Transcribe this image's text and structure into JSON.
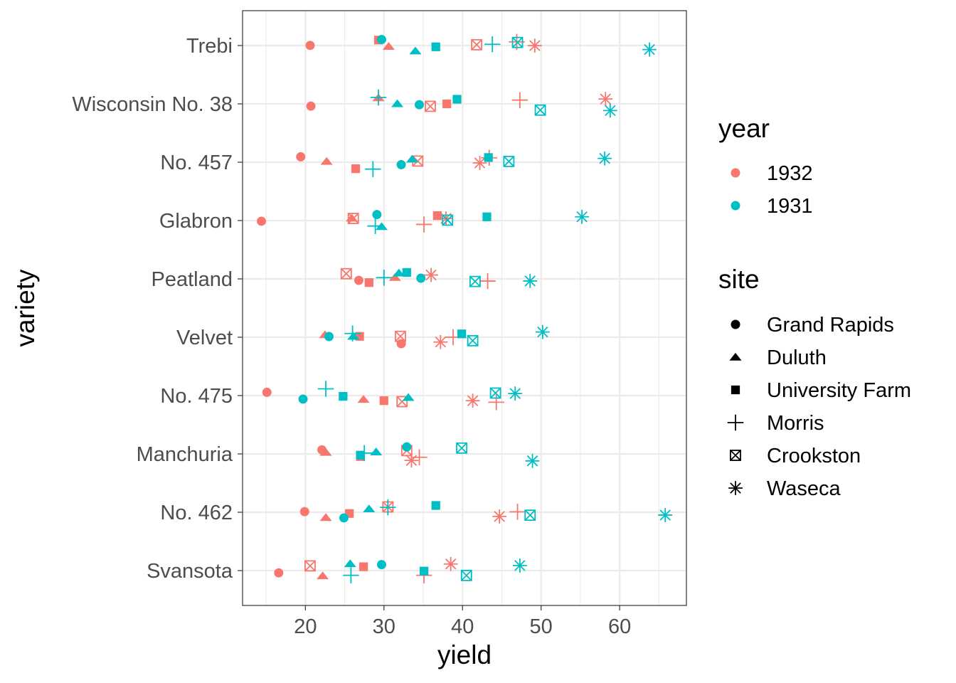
{
  "chart_data": {
    "type": "scatter",
    "title": "",
    "xlabel": "yield",
    "ylabel": "variety",
    "xlim": [
      12.0,
      68.5
    ],
    "xticks": [
      20,
      30,
      40,
      50,
      60
    ],
    "grid": true,
    "varieties": [
      "Svansota",
      "No. 462",
      "Manchuria",
      "No. 475",
      "Velvet",
      "Peatland",
      "Glabron",
      "No. 457",
      "Wisconsin No. 38",
      "Trebi"
    ],
    "years": [
      {
        "name": "1932",
        "color": "#F8766D"
      },
      {
        "name": "1931",
        "color": "#00BFC4"
      }
    ],
    "sites": [
      {
        "name": "Grand Rapids",
        "shape": "circle"
      },
      {
        "name": "Duluth",
        "shape": "triangle"
      },
      {
        "name": "University Farm",
        "shape": "square"
      },
      {
        "name": "Morris",
        "shape": "plus"
      },
      {
        "name": "Crookston",
        "shape": "boxcross"
      },
      {
        "name": "Waseca",
        "shape": "asterisk"
      }
    ],
    "legend_year_title": "year",
    "legend_site_title": "site",
    "points": [
      {
        "variety": "Trebi",
        "year": "1932",
        "site": "Grand Rapids",
        "yield": 20.6
      },
      {
        "variety": "Trebi",
        "year": "1932",
        "site": "Duluth",
        "yield": 30.6
      },
      {
        "variety": "Trebi",
        "year": "1932",
        "site": "University Farm",
        "yield": 29.3
      },
      {
        "variety": "Trebi",
        "year": "1932",
        "site": "Morris",
        "yield": 46.9
      },
      {
        "variety": "Trebi",
        "year": "1932",
        "site": "Crookston",
        "yield": 41.8
      },
      {
        "variety": "Trebi",
        "year": "1932",
        "site": "Waseca",
        "yield": 49.2
      },
      {
        "variety": "Trebi",
        "year": "1931",
        "site": "Grand Rapids",
        "yield": 29.7
      },
      {
        "variety": "Trebi",
        "year": "1931",
        "site": "Duluth",
        "yield": 34.0
      },
      {
        "variety": "Trebi",
        "year": "1931",
        "site": "University Farm",
        "yield": 36.6
      },
      {
        "variety": "Trebi",
        "year": "1931",
        "site": "Morris",
        "yield": 43.8
      },
      {
        "variety": "Trebi",
        "year": "1931",
        "site": "Crookston",
        "yield": 47.0
      },
      {
        "variety": "Trebi",
        "year": "1931",
        "site": "Waseca",
        "yield": 63.8
      },
      {
        "variety": "Wisconsin No. 38",
        "year": "1932",
        "site": "Grand Rapids",
        "yield": 20.7
      },
      {
        "variety": "Wisconsin No. 38",
        "year": "1932",
        "site": "Duluth",
        "yield": 29.3
      },
      {
        "variety": "Wisconsin No. 38",
        "year": "1932",
        "site": "University Farm",
        "yield": 38.0
      },
      {
        "variety": "Wisconsin No. 38",
        "year": "1932",
        "site": "Morris",
        "yield": 47.3
      },
      {
        "variety": "Wisconsin No. 38",
        "year": "1932",
        "site": "Crookston",
        "yield": 35.9
      },
      {
        "variety": "Wisconsin No. 38",
        "year": "1932",
        "site": "Waseca",
        "yield": 58.2
      },
      {
        "variety": "Wisconsin No. 38",
        "year": "1931",
        "site": "Grand Rapids",
        "yield": 34.5
      },
      {
        "variety": "Wisconsin No. 38",
        "year": "1931",
        "site": "Duluth",
        "yield": 31.7
      },
      {
        "variety": "Wisconsin No. 38",
        "year": "1931",
        "site": "University Farm",
        "yield": 39.3
      },
      {
        "variety": "Wisconsin No. 38",
        "year": "1931",
        "site": "Morris",
        "yield": 29.3
      },
      {
        "variety": "Wisconsin No. 38",
        "year": "1931",
        "site": "Crookston",
        "yield": 49.9
      },
      {
        "variety": "Wisconsin No. 38",
        "year": "1931",
        "site": "Waseca",
        "yield": 58.8
      },
      {
        "variety": "No. 457",
        "year": "1932",
        "site": "Grand Rapids",
        "yield": 19.4
      },
      {
        "variety": "No. 457",
        "year": "1932",
        "site": "Duluth",
        "yield": 22.7
      },
      {
        "variety": "No. 457",
        "year": "1932",
        "site": "University Farm",
        "yield": 26.4
      },
      {
        "variety": "No. 457",
        "year": "1932",
        "site": "Morris",
        "yield": 43.4
      },
      {
        "variety": "No. 457",
        "year": "1932",
        "site": "Crookston",
        "yield": 34.3
      },
      {
        "variety": "No. 457",
        "year": "1932",
        "site": "Waseca",
        "yield": 42.2
      },
      {
        "variety": "No. 457",
        "year": "1931",
        "site": "Grand Rapids",
        "yield": 32.2
      },
      {
        "variety": "No. 457",
        "year": "1931",
        "site": "Duluth",
        "yield": 33.6
      },
      {
        "variety": "No. 457",
        "year": "1931",
        "site": "University Farm",
        "yield": 43.3
      },
      {
        "variety": "No. 457",
        "year": "1931",
        "site": "Morris",
        "yield": 28.6
      },
      {
        "variety": "No. 457",
        "year": "1931",
        "site": "Crookston",
        "yield": 45.9
      },
      {
        "variety": "No. 457",
        "year": "1931",
        "site": "Waseca",
        "yield": 58.1
      },
      {
        "variety": "Glabron",
        "year": "1932",
        "site": "Grand Rapids",
        "yield": 14.4
      },
      {
        "variety": "Glabron",
        "year": "1932",
        "site": "Duluth",
        "yield": 25.9
      },
      {
        "variety": "Glabron",
        "year": "1932",
        "site": "University Farm",
        "yield": 36.8
      },
      {
        "variety": "Glabron",
        "year": "1932",
        "site": "Morris",
        "yield": 35.1
      },
      {
        "variety": "Glabron",
        "year": "1932",
        "site": "Crookston",
        "yield": 26.1
      },
      {
        "variety": "Glabron",
        "year": "1932",
        "site": "Waseca",
        "yield": 37.9
      },
      {
        "variety": "Glabron",
        "year": "1931",
        "site": "Grand Rapids",
        "yield": 29.1
      },
      {
        "variety": "Glabron",
        "year": "1931",
        "site": "Duluth",
        "yield": 29.7
      },
      {
        "variety": "Glabron",
        "year": "1931",
        "site": "University Farm",
        "yield": 43.1
      },
      {
        "variety": "Glabron",
        "year": "1931",
        "site": "Morris",
        "yield": 28.9
      },
      {
        "variety": "Glabron",
        "year": "1931",
        "site": "Crookston",
        "yield": 38.1
      },
      {
        "variety": "Glabron",
        "year": "1931",
        "site": "Waseca",
        "yield": 55.2
      },
      {
        "variety": "Peatland",
        "year": "1932",
        "site": "Grand Rapids",
        "yield": 26.8
      },
      {
        "variety": "Peatland",
        "year": "1932",
        "site": "Duluth",
        "yield": 31.4
      },
      {
        "variety": "Peatland",
        "year": "1932",
        "site": "University Farm",
        "yield": 28.1
      },
      {
        "variety": "Peatland",
        "year": "1932",
        "site": "Morris",
        "yield": 43.2
      },
      {
        "variety": "Peatland",
        "year": "1932",
        "site": "Crookston",
        "yield": 25.2
      },
      {
        "variety": "Peatland",
        "year": "1932",
        "site": "Waseca",
        "yield": 36.0
      },
      {
        "variety": "Peatland",
        "year": "1931",
        "site": "Grand Rapids",
        "yield": 34.7
      },
      {
        "variety": "Peatland",
        "year": "1931",
        "site": "Duluth",
        "yield": 31.9
      },
      {
        "variety": "Peatland",
        "year": "1931",
        "site": "University Farm",
        "yield": 32.9
      },
      {
        "variety": "Peatland",
        "year": "1931",
        "site": "Morris",
        "yield": 30.0
      },
      {
        "variety": "Peatland",
        "year": "1931",
        "site": "Crookston",
        "yield": 41.6
      },
      {
        "variety": "Peatland",
        "year": "1931",
        "site": "Waseca",
        "yield": 48.6
      },
      {
        "variety": "Velvet",
        "year": "1932",
        "site": "Grand Rapids",
        "yield": 32.2
      },
      {
        "variety": "Velvet",
        "year": "1932",
        "site": "Duluth",
        "yield": 22.5
      },
      {
        "variety": "Velvet",
        "year": "1932",
        "site": "University Farm",
        "yield": 26.9
      },
      {
        "variety": "Velvet",
        "year": "1932",
        "site": "Morris",
        "yield": 38.8
      },
      {
        "variety": "Velvet",
        "year": "1932",
        "site": "Crookston",
        "yield": 32.1
      },
      {
        "variety": "Velvet",
        "year": "1932",
        "site": "Waseca",
        "yield": 37.2
      },
      {
        "variety": "Velvet",
        "year": "1931",
        "site": "Grand Rapids",
        "yield": 23.0
      },
      {
        "variety": "Velvet",
        "year": "1931",
        "site": "Duluth",
        "yield": 26.1
      },
      {
        "variety": "Velvet",
        "year": "1931",
        "site": "University Farm",
        "yield": 39.9
      },
      {
        "variety": "Velvet",
        "year": "1931",
        "site": "Morris",
        "yield": 26.0
      },
      {
        "variety": "Velvet",
        "year": "1931",
        "site": "Crookston",
        "yield": 41.3
      },
      {
        "variety": "Velvet",
        "year": "1931",
        "site": "Waseca",
        "yield": 50.2
      },
      {
        "variety": "No. 475",
        "year": "1932",
        "site": "Grand Rapids",
        "yield": 15.1
      },
      {
        "variety": "No. 475",
        "year": "1932",
        "site": "Duluth",
        "yield": 27.4
      },
      {
        "variety": "No. 475",
        "year": "1932",
        "site": "University Farm",
        "yield": 30.0
      },
      {
        "variety": "No. 475",
        "year": "1932",
        "site": "Morris",
        "yield": 44.3
      },
      {
        "variety": "No. 475",
        "year": "1932",
        "site": "Crookston",
        "yield": 32.3
      },
      {
        "variety": "No. 475",
        "year": "1932",
        "site": "Waseca",
        "yield": 41.3
      },
      {
        "variety": "No. 475",
        "year": "1931",
        "site": "Grand Rapids",
        "yield": 19.7
      },
      {
        "variety": "No. 475",
        "year": "1931",
        "site": "Duluth",
        "yield": 33.1
      },
      {
        "variety": "No. 475",
        "year": "1931",
        "site": "University Farm",
        "yield": 24.8
      },
      {
        "variety": "No. 475",
        "year": "1931",
        "site": "Morris",
        "yield": 22.6
      },
      {
        "variety": "No. 475",
        "year": "1931",
        "site": "Crookston",
        "yield": 44.2
      },
      {
        "variety": "No. 475",
        "year": "1931",
        "site": "Waseca",
        "yield": 46.7
      },
      {
        "variety": "Manchuria",
        "year": "1932",
        "site": "Grand Rapids",
        "yield": 22.1
      },
      {
        "variety": "Manchuria",
        "year": "1932",
        "site": "Duluth",
        "yield": 22.6
      },
      {
        "variety": "Manchuria",
        "year": "1932",
        "site": "University Farm",
        "yield": 27.0
      },
      {
        "variety": "Manchuria",
        "year": "1932",
        "site": "Morris",
        "yield": 34.5
      },
      {
        "variety": "Manchuria",
        "year": "1932",
        "site": "Crookston",
        "yield": 32.9
      },
      {
        "variety": "Manchuria",
        "year": "1932",
        "site": "Waseca",
        "yield": 33.5
      },
      {
        "variety": "Manchuria",
        "year": "1931",
        "site": "Grand Rapids",
        "yield": 32.9
      },
      {
        "variety": "Manchuria",
        "year": "1931",
        "site": "Duluth",
        "yield": 29.0
      },
      {
        "variety": "Manchuria",
        "year": "1931",
        "site": "University Farm",
        "yield": 27.0
      },
      {
        "variety": "Manchuria",
        "year": "1931",
        "site": "Morris",
        "yield": 27.5
      },
      {
        "variety": "Manchuria",
        "year": "1931",
        "site": "Crookston",
        "yield": 39.9
      },
      {
        "variety": "Manchuria",
        "year": "1931",
        "site": "Waseca",
        "yield": 48.9
      },
      {
        "variety": "No. 462",
        "year": "1932",
        "site": "Grand Rapids",
        "yield": 19.9
      },
      {
        "variety": "No. 462",
        "year": "1932",
        "site": "Duluth",
        "yield": 22.6
      },
      {
        "variety": "No. 462",
        "year": "1932",
        "site": "University Farm",
        "yield": 25.6
      },
      {
        "variety": "No. 462",
        "year": "1932",
        "site": "Morris",
        "yield": 47.0
      },
      {
        "variety": "No. 462",
        "year": "1932",
        "site": "Crookston",
        "yield": 30.5
      },
      {
        "variety": "No. 462",
        "year": "1932",
        "site": "Waseca",
        "yield": 44.7
      },
      {
        "variety": "No. 462",
        "year": "1931",
        "site": "Grand Rapids",
        "yield": 24.9
      },
      {
        "variety": "No. 462",
        "year": "1931",
        "site": "Duluth",
        "yield": 28.1
      },
      {
        "variety": "No. 462",
        "year": "1931",
        "site": "University Farm",
        "yield": 36.6
      },
      {
        "variety": "No. 462",
        "year": "1931",
        "site": "Morris",
        "yield": 30.5
      },
      {
        "variety": "No. 462",
        "year": "1931",
        "site": "Crookston",
        "yield": 48.6
      },
      {
        "variety": "No. 462",
        "year": "1931",
        "site": "Waseca",
        "yield": 65.8
      },
      {
        "variety": "Svansota",
        "year": "1932",
        "site": "Grand Rapids",
        "yield": 16.6
      },
      {
        "variety": "Svansota",
        "year": "1932",
        "site": "Duluth",
        "yield": 22.2
      },
      {
        "variety": "Svansota",
        "year": "1932",
        "site": "University Farm",
        "yield": 27.4
      },
      {
        "variety": "Svansota",
        "year": "1932",
        "site": "Morris",
        "yield": 35.1
      },
      {
        "variety": "Svansota",
        "year": "1932",
        "site": "Crookston",
        "yield": 20.6
      },
      {
        "variety": "Svansota",
        "year": "1932",
        "site": "Waseca",
        "yield": 38.5
      },
      {
        "variety": "Svansota",
        "year": "1931",
        "site": "Grand Rapids",
        "yield": 29.7
      },
      {
        "variety": "Svansota",
        "year": "1931",
        "site": "Duluth",
        "yield": 25.7
      },
      {
        "variety": "Svansota",
        "year": "1931",
        "site": "University Farm",
        "yield": 35.1
      },
      {
        "variety": "Svansota",
        "year": "1931",
        "site": "Morris",
        "yield": 25.8
      },
      {
        "variety": "Svansota",
        "year": "1931",
        "site": "Crookston",
        "yield": 40.5
      },
      {
        "variety": "Svansota",
        "year": "1931",
        "site": "Waseca",
        "yield": 47.3
      }
    ]
  }
}
